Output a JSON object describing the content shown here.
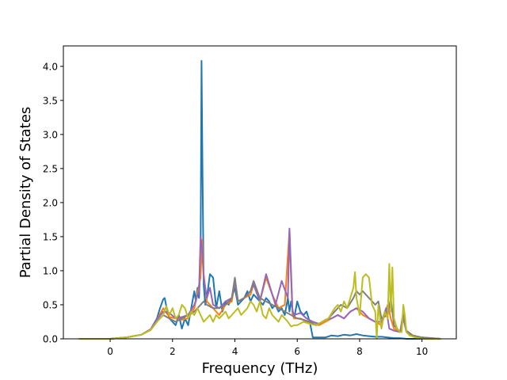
{
  "chart_data": {
    "type": "line",
    "title": "",
    "xlabel": "Frequency (THz)",
    "ylabel": "Partial Density of States",
    "xlim": [
      -1.5,
      11.1
    ],
    "ylim": [
      0,
      4.3
    ],
    "x_ticks": [
      0,
      2,
      4,
      6,
      8,
      10
    ],
    "x_tick_labels": [
      "0",
      "2",
      "4",
      "6",
      "8",
      "10"
    ],
    "y_ticks": [
      0.0,
      0.5,
      1.0,
      1.5,
      2.0,
      2.5,
      3.0,
      3.5,
      4.0
    ],
    "y_tick_labels": [
      "0.0",
      "0.5",
      "1.0",
      "1.5",
      "2.0",
      "2.5",
      "3.0",
      "3.5",
      "4.0"
    ],
    "grid": false,
    "legend": "none",
    "series": [
      {
        "color": "#1f77b4",
        "x": [
          -1.0,
          0.0,
          0.5,
          1.0,
          1.3,
          1.5,
          1.6,
          1.7,
          1.75,
          1.8,
          1.9,
          2.0,
          2.1,
          2.2,
          2.3,
          2.4,
          2.5,
          2.6,
          2.7,
          2.75,
          2.8,
          2.85,
          2.9,
          2.93,
          2.96,
          3.0,
          3.05,
          3.1,
          3.2,
          3.3,
          3.4,
          3.5,
          3.6,
          3.7,
          3.8,
          3.9,
          4.0,
          4.1,
          4.2,
          4.3,
          4.4,
          4.5,
          4.6,
          4.7,
          4.8,
          4.9,
          5.0,
          5.1,
          5.2,
          5.3,
          5.4,
          5.5,
          5.6,
          5.7,
          5.75,
          5.8,
          5.9,
          6.0,
          6.1,
          6.2,
          6.3,
          6.4,
          6.5,
          6.7,
          6.9,
          7.1,
          7.3,
          7.5,
          7.7,
          7.9,
          8.1,
          8.3,
          8.5,
          8.7,
          8.9,
          9.1,
          9.3,
          9.5,
          9.7,
          10.0,
          10.6
        ],
        "y": [
          0.0,
          0.0,
          0.02,
          0.06,
          0.14,
          0.3,
          0.45,
          0.58,
          0.6,
          0.48,
          0.3,
          0.25,
          0.2,
          0.35,
          0.15,
          0.3,
          0.2,
          0.45,
          0.7,
          0.55,
          0.75,
          0.6,
          1.2,
          4.08,
          2.5,
          0.8,
          0.5,
          0.6,
          0.95,
          0.9,
          0.45,
          0.7,
          0.4,
          0.55,
          0.5,
          0.6,
          0.75,
          0.5,
          0.55,
          0.6,
          0.7,
          0.55,
          0.65,
          0.6,
          0.55,
          0.5,
          0.6,
          0.55,
          0.45,
          0.5,
          0.4,
          0.45,
          0.35,
          0.6,
          0.4,
          0.55,
          0.3,
          0.55,
          0.4,
          0.35,
          0.4,
          0.25,
          0.02,
          0.02,
          0.02,
          0.05,
          0.04,
          0.06,
          0.05,
          0.07,
          0.05,
          0.04,
          0.03,
          0.03,
          0.02,
          0.01,
          0.01,
          0.0,
          0.0,
          0.0,
          0.0
        ]
      },
      {
        "color": "#ff7f0e",
        "x": [
          -1.0,
          0.0,
          0.5,
          1.0,
          1.3,
          1.5,
          1.7,
          1.9,
          2.1,
          2.3,
          2.5,
          2.7,
          2.9,
          2.95,
          3.0,
          3.1,
          3.2,
          3.3,
          3.5,
          3.7,
          3.9,
          4.0,
          4.1,
          4.3,
          4.5,
          4.6,
          4.8,
          5.0,
          5.2,
          5.4,
          5.6,
          5.75,
          5.8,
          5.85,
          5.9,
          6.1,
          6.3,
          6.5,
          6.7,
          6.9,
          7.1,
          7.3,
          7.5,
          7.7,
          7.9,
          8.1,
          8.3,
          8.5,
          8.7,
          8.9,
          9.0,
          9.1,
          9.3,
          9.4,
          9.5,
          9.7,
          10.0,
          10.6
        ],
        "y": [
          0.0,
          0.0,
          0.02,
          0.06,
          0.14,
          0.28,
          0.45,
          0.32,
          0.3,
          0.28,
          0.3,
          0.45,
          0.9,
          1.45,
          0.95,
          0.55,
          0.5,
          0.45,
          0.35,
          0.5,
          0.55,
          0.85,
          0.55,
          0.6,
          0.65,
          0.8,
          0.55,
          0.9,
          0.65,
          0.45,
          0.5,
          1.6,
          0.9,
          0.35,
          0.3,
          0.3,
          0.25,
          0.22,
          0.2,
          0.25,
          0.3,
          0.35,
          0.3,
          0.4,
          0.45,
          0.35,
          0.3,
          0.25,
          0.2,
          0.5,
          0.3,
          0.15,
          0.1,
          0.4,
          0.12,
          0.05,
          0.02,
          0.0
        ]
      },
      {
        "color": "#9467bd",
        "x": [
          -1.0,
          0.0,
          0.5,
          1.0,
          1.3,
          1.5,
          1.7,
          1.9,
          2.1,
          2.3,
          2.5,
          2.7,
          2.85,
          2.9,
          2.95,
          3.0,
          3.1,
          3.2,
          3.3,
          3.5,
          3.7,
          3.9,
          4.0,
          4.1,
          4.3,
          4.5,
          4.6,
          4.8,
          5.0,
          5.1,
          5.3,
          5.5,
          5.7,
          5.75,
          5.8,
          5.85,
          5.9,
          6.1,
          6.3,
          6.5,
          6.7,
          6.9,
          7.1,
          7.3,
          7.5,
          7.7,
          7.9,
          8.1,
          8.3,
          8.5,
          8.7,
          8.85,
          8.9,
          8.95,
          9.1,
          9.3,
          9.4,
          9.5,
          9.7,
          10.0,
          10.6
        ],
        "y": [
          0.0,
          0.0,
          0.02,
          0.06,
          0.14,
          0.28,
          0.4,
          0.38,
          0.3,
          0.32,
          0.35,
          0.5,
          0.7,
          1.5,
          1.3,
          0.9,
          0.6,
          0.75,
          0.5,
          0.45,
          0.55,
          0.6,
          0.85,
          0.55,
          0.6,
          0.7,
          0.8,
          0.55,
          0.95,
          0.8,
          0.5,
          0.85,
          0.6,
          1.62,
          1.0,
          0.4,
          0.35,
          0.38,
          0.3,
          0.25,
          0.22,
          0.28,
          0.3,
          0.35,
          0.3,
          0.4,
          0.45,
          0.4,
          0.3,
          0.25,
          0.25,
          0.45,
          0.3,
          0.15,
          0.12,
          0.1,
          0.3,
          0.1,
          0.05,
          0.02,
          0.0
        ]
      },
      {
        "color": "#7f7f7f",
        "x": [
          -1.0,
          0.0,
          0.5,
          1.0,
          1.3,
          1.5,
          1.7,
          1.9,
          2.1,
          2.3,
          2.5,
          2.7,
          2.9,
          3.0,
          3.1,
          3.3,
          3.5,
          3.7,
          3.9,
          4.0,
          4.1,
          4.3,
          4.5,
          4.6,
          4.8,
          5.0,
          5.2,
          5.4,
          5.6,
          5.8,
          6.0,
          6.2,
          6.4,
          6.6,
          6.8,
          7.0,
          7.2,
          7.4,
          7.6,
          7.8,
          7.9,
          8.0,
          8.1,
          8.3,
          8.5,
          8.6,
          8.7,
          8.9,
          9.0,
          9.1,
          9.3,
          9.4,
          9.5,
          9.7,
          10.0,
          10.6
        ],
        "y": [
          0.0,
          0.0,
          0.02,
          0.06,
          0.13,
          0.25,
          0.35,
          0.3,
          0.25,
          0.3,
          0.35,
          0.4,
          0.5,
          0.55,
          0.5,
          0.45,
          0.45,
          0.5,
          0.6,
          0.9,
          0.55,
          0.6,
          0.7,
          0.85,
          0.6,
          0.55,
          0.5,
          0.45,
          0.4,
          0.35,
          0.3,
          0.28,
          0.25,
          0.2,
          0.25,
          0.3,
          0.4,
          0.5,
          0.45,
          0.6,
          0.7,
          0.65,
          0.7,
          0.6,
          0.5,
          0.55,
          0.3,
          0.35,
          0.6,
          0.2,
          0.1,
          0.35,
          0.12,
          0.05,
          0.02,
          0.0
        ]
      },
      {
        "color": "#bcbd22",
        "x": [
          -1.0,
          0.0,
          0.5,
          1.0,
          1.3,
          1.5,
          1.7,
          1.8,
          1.9,
          2.0,
          2.1,
          2.2,
          2.3,
          2.4,
          2.5,
          2.6,
          2.7,
          2.8,
          2.9,
          3.0,
          3.1,
          3.2,
          3.3,
          3.4,
          3.5,
          3.6,
          3.7,
          3.8,
          3.9,
          4.0,
          4.1,
          4.2,
          4.3,
          4.4,
          4.5,
          4.6,
          4.7,
          4.8,
          4.9,
          5.0,
          5.1,
          5.2,
          5.3,
          5.4,
          5.5,
          5.6,
          5.7,
          5.8,
          5.9,
          6.0,
          6.2,
          6.4,
          6.6,
          6.8,
          7.0,
          7.2,
          7.3,
          7.4,
          7.5,
          7.6,
          7.7,
          7.8,
          7.85,
          7.9,
          8.0,
          8.1,
          8.2,
          8.3,
          8.4,
          8.5,
          8.55,
          8.6,
          8.7,
          8.8,
          8.9,
          8.95,
          9.0,
          9.05,
          9.1,
          9.2,
          9.3,
          9.35,
          9.4,
          9.45,
          9.5,
          9.6,
          9.8,
          10.0,
          10.6
        ],
        "y": [
          0.0,
          0.0,
          0.02,
          0.06,
          0.13,
          0.25,
          0.35,
          0.48,
          0.35,
          0.45,
          0.3,
          0.35,
          0.5,
          0.45,
          0.3,
          0.4,
          0.35,
          0.45,
          0.35,
          0.25,
          0.3,
          0.35,
          0.25,
          0.35,
          0.3,
          0.35,
          0.4,
          0.3,
          0.35,
          0.4,
          0.45,
          0.35,
          0.4,
          0.45,
          0.55,
          0.5,
          0.4,
          0.55,
          0.35,
          0.3,
          0.45,
          0.35,
          0.3,
          0.25,
          0.35,
          0.3,
          0.25,
          0.18,
          0.2,
          0.2,
          0.25,
          0.22,
          0.2,
          0.25,
          0.3,
          0.45,
          0.5,
          0.4,
          0.55,
          0.45,
          0.6,
          0.75,
          0.98,
          0.6,
          0.35,
          0.9,
          0.95,
          0.9,
          0.5,
          0.4,
          0.0,
          0.5,
          0.15,
          0.4,
          0.3,
          1.1,
          0.4,
          1.05,
          0.3,
          0.15,
          0.1,
          0.1,
          0.5,
          0.35,
          0.1,
          0.05,
          0.02,
          0.0,
          0.0
        ]
      }
    ]
  }
}
